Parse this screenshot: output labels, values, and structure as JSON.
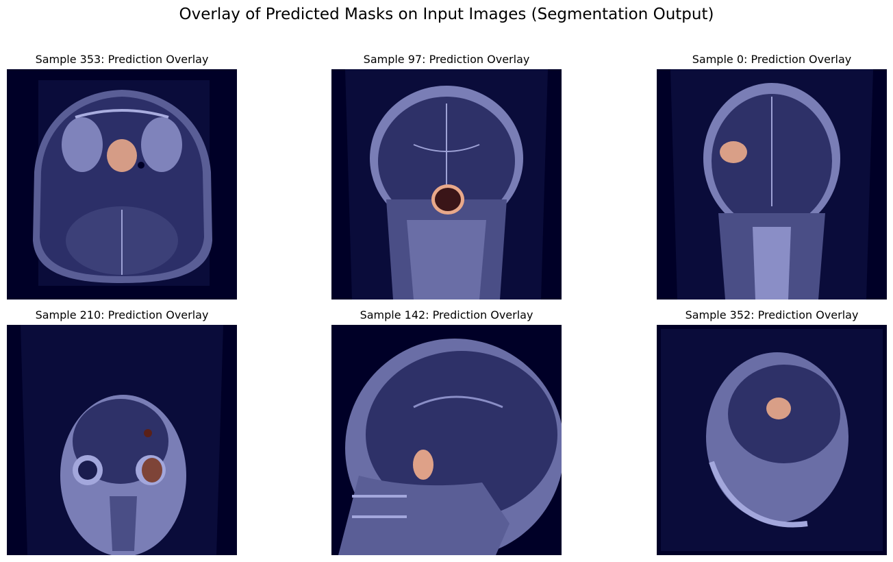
{
  "figure": {
    "title": "Overlay of Predicted Masks on Input Images (Segmentation Output)"
  },
  "colors": {
    "background": "#000027",
    "tissue": "#8f93c4",
    "mask": "#e8a88a"
  },
  "panels": [
    {
      "title": "Sample 353: Prediction Overlay",
      "view": "axial"
    },
    {
      "title": "Sample 97: Prediction Overlay",
      "view": "coronal"
    },
    {
      "title": "Sample 0: Prediction Overlay",
      "view": "coronal"
    },
    {
      "title": "Sample 210: Prediction Overlay",
      "view": "coronal"
    },
    {
      "title": "Sample 142: Prediction Overlay",
      "view": "sagittal"
    },
    {
      "title": "Sample 352: Prediction Overlay",
      "view": "sagittal"
    }
  ]
}
